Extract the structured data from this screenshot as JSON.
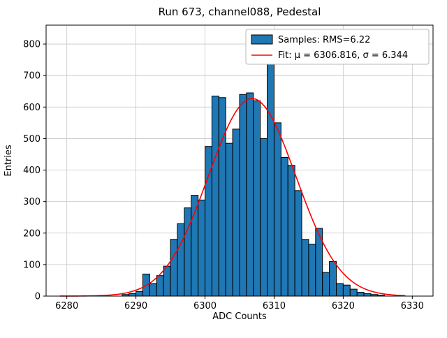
{
  "figure": {
    "title": "Run 673, channel088, Pedestal",
    "xlabel": "ADC Counts",
    "ylabel": "Entries"
  },
  "legend": {
    "position": "upper right",
    "entries": [
      {
        "label": "Samples: RMS=6.22",
        "type": "patch",
        "color": "#1f77b4",
        "edge": "#000000"
      },
      {
        "label": "Fit: μ = 6306.816, σ = 6.344",
        "type": "line",
        "color": "#ff0000"
      }
    ]
  },
  "chart_data": {
    "type": "bar",
    "title": "Run 673, channel088, Pedestal",
    "xlabel": "ADC Counts",
    "ylabel": "Entries",
    "xlim": [
      6277,
      6333
    ],
    "ylim": [
      0,
      860
    ],
    "xticks": [
      6280,
      6290,
      6300,
      6310,
      6320,
      6330
    ],
    "yticks": [
      0,
      100,
      200,
      300,
      400,
      500,
      600,
      700,
      800
    ],
    "grid": true,
    "bar_color": "#1f77b4",
    "bar_edge": "#000000",
    "bin_width": 1,
    "bins_start": 6288,
    "values": [
      5,
      8,
      15,
      70,
      40,
      65,
      95,
      180,
      230,
      280,
      320,
      305,
      475,
      635,
      630,
      485,
      530,
      640,
      645,
      620,
      500,
      745,
      550,
      440,
      415,
      335,
      180,
      165,
      215,
      75,
      110,
      40,
      35,
      22,
      12,
      8,
      5,
      3
    ],
    "fit": {
      "mu": 6306.816,
      "sigma": 6.344,
      "amplitude": 627,
      "range": [
        6279,
        6329
      ],
      "color": "#ff0000"
    }
  }
}
